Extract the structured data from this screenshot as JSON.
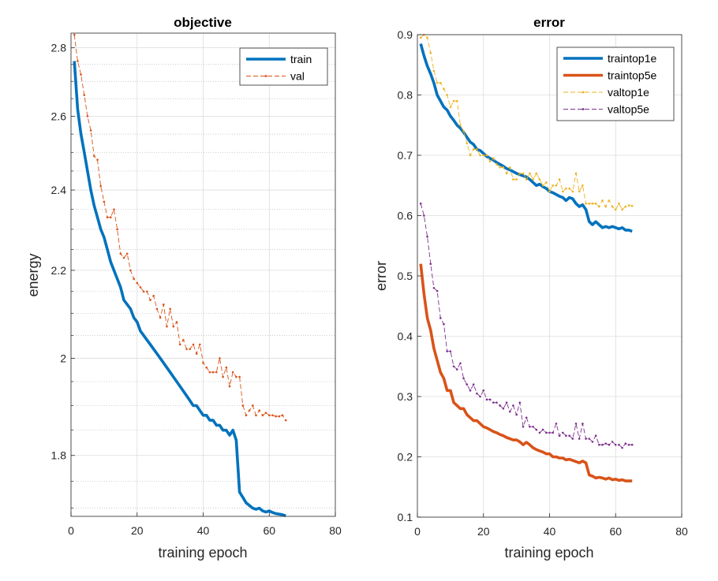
{
  "chart_data": [
    {
      "type": "line",
      "title": "objective",
      "xlabel": "training epoch",
      "ylabel": "energy",
      "xlim": [
        0,
        80
      ],
      "ylim": [
        1.685,
        2.845
      ],
      "yscale": "log",
      "xticks": [
        0,
        20,
        40,
        60,
        80
      ],
      "yticks": [
        1.8,
        2,
        2.2,
        2.4,
        2.6,
        2.8
      ],
      "ytick_labels": [
        "1.8",
        "2",
        "2.2",
        "2.4",
        "2.6",
        "2.8"
      ],
      "xtick_labels": [
        "0",
        "20",
        "40",
        "60",
        "80"
      ],
      "yminor": [
        1.7,
        1.75,
        1.85,
        1.9,
        1.95,
        2.05,
        2.1,
        2.15,
        2.25,
        2.3,
        2.35,
        2.45,
        2.5,
        2.55,
        2.65,
        2.7,
        2.75
      ],
      "grid": true,
      "legend_position": "top-right",
      "series": [
        {
          "name": "train",
          "color": "#0072BD",
          "style": "thick-solid",
          "x": [
            1,
            2,
            3,
            4,
            5,
            6,
            7,
            8,
            9,
            10,
            11,
            12,
            13,
            14,
            15,
            16,
            17,
            18,
            19,
            20,
            21,
            22,
            23,
            24,
            25,
            26,
            27,
            28,
            29,
            30,
            31,
            32,
            33,
            34,
            35,
            36,
            37,
            38,
            39,
            40,
            41,
            42,
            43,
            44,
            45,
            46,
            47,
            48,
            49,
            50,
            51,
            52,
            53,
            54,
            55,
            56,
            57,
            58,
            59,
            60,
            61,
            62,
            63,
            64,
            65
          ],
          "y": [
            2.76,
            2.62,
            2.55,
            2.5,
            2.45,
            2.4,
            2.36,
            2.33,
            2.3,
            2.28,
            2.25,
            2.22,
            2.2,
            2.18,
            2.16,
            2.13,
            2.12,
            2.11,
            2.09,
            2.08,
            2.06,
            2.05,
            2.04,
            2.03,
            2.02,
            2.01,
            2,
            1.99,
            1.98,
            1.97,
            1.96,
            1.95,
            1.94,
            1.93,
            1.92,
            1.91,
            1.9,
            1.9,
            1.89,
            1.88,
            1.88,
            1.87,
            1.87,
            1.86,
            1.86,
            1.85,
            1.85,
            1.84,
            1.85,
            1.83,
            1.73,
            1.72,
            1.71,
            1.705,
            1.7,
            1.698,
            1.7,
            1.695,
            1.693,
            1.695,
            1.692,
            1.69,
            1.689,
            1.688,
            1.686
          ]
        },
        {
          "name": "val",
          "color": "#D95319",
          "style": "dashed-dots",
          "x": [
            1,
            2,
            3,
            4,
            5,
            6,
            7,
            8,
            9,
            10,
            11,
            12,
            13,
            14,
            15,
            16,
            17,
            18,
            19,
            20,
            21,
            22,
            23,
            24,
            25,
            26,
            27,
            28,
            29,
            30,
            31,
            32,
            33,
            34,
            35,
            36,
            37,
            38,
            39,
            40,
            41,
            42,
            43,
            44,
            45,
            46,
            47,
            48,
            49,
            50,
            51,
            52,
            53,
            54,
            55,
            56,
            57,
            58,
            59,
            60,
            61,
            62,
            63,
            64,
            65
          ],
          "y": [
            2.84,
            2.76,
            2.72,
            2.66,
            2.6,
            2.56,
            2.49,
            2.48,
            2.41,
            2.37,
            2.33,
            2.33,
            2.35,
            2.3,
            2.24,
            2.23,
            2.24,
            2.2,
            2.18,
            2.17,
            2.16,
            2.15,
            2.15,
            2.13,
            2.14,
            2.11,
            2.09,
            2.12,
            2.07,
            2.11,
            2.07,
            2.08,
            2.03,
            2.04,
            2.02,
            2.02,
            2.03,
            2.01,
            2.03,
            1.99,
            1.98,
            1.97,
            1.97,
            1.97,
            2,
            1.96,
            1.98,
            1.94,
            1.97,
            1.96,
            1.96,
            1.9,
            1.88,
            1.89,
            1.9,
            1.88,
            1.89,
            1.88,
            1.885,
            1.88,
            1.88,
            1.878,
            1.878,
            1.88,
            1.87
          ]
        }
      ]
    },
    {
      "type": "line",
      "title": "error",
      "xlabel": "training epoch",
      "ylabel": "error",
      "xlim": [
        0,
        80
      ],
      "ylim": [
        0.1,
        0.9
      ],
      "xticks": [
        0,
        20,
        40,
        60,
        80
      ],
      "yticks": [
        0.1,
        0.2,
        0.3,
        0.4,
        0.5,
        0.6,
        0.7,
        0.8,
        0.9
      ],
      "ytick_labels": [
        "0.1",
        "0.2",
        "0.3",
        "0.4",
        "0.5",
        "0.6",
        "0.7",
        "0.8",
        "0.9"
      ],
      "xtick_labels": [
        "0",
        "20",
        "40",
        "60",
        "80"
      ],
      "grid": true,
      "legend_position": "top-right",
      "series": [
        {
          "name": "traintop1e",
          "color": "#0072BD",
          "style": "thick-solid",
          "x": [
            1,
            2,
            3,
            4,
            5,
            6,
            7,
            8,
            9,
            10,
            11,
            12,
            13,
            14,
            15,
            16,
            17,
            18,
            19,
            20,
            21,
            22,
            23,
            24,
            25,
            26,
            27,
            28,
            29,
            30,
            31,
            32,
            33,
            34,
            35,
            36,
            37,
            38,
            39,
            40,
            41,
            42,
            43,
            44,
            45,
            46,
            47,
            48,
            49,
            50,
            51,
            52,
            53,
            54,
            55,
            56,
            57,
            58,
            59,
            60,
            61,
            62,
            63,
            64,
            65
          ],
          "y": [
            0.885,
            0.865,
            0.848,
            0.835,
            0.82,
            0.8,
            0.79,
            0.78,
            0.775,
            0.765,
            0.758,
            0.75,
            0.745,
            0.738,
            0.73,
            0.722,
            0.718,
            0.71,
            0.708,
            0.703,
            0.698,
            0.695,
            0.692,
            0.688,
            0.685,
            0.682,
            0.678,
            0.676,
            0.673,
            0.67,
            0.668,
            0.666,
            0.664,
            0.66,
            0.655,
            0.65,
            0.652,
            0.648,
            0.645,
            0.64,
            0.638,
            0.635,
            0.632,
            0.63,
            0.625,
            0.63,
            0.628,
            0.62,
            0.615,
            0.618,
            0.61,
            0.59,
            0.585,
            0.59,
            0.585,
            0.58,
            0.582,
            0.58,
            0.582,
            0.58,
            0.578,
            0.58,
            0.576,
            0.576,
            0.574
          ]
        },
        {
          "name": "traintop5e",
          "color": "#D95319",
          "style": "thick-solid",
          "x": [
            1,
            2,
            3,
            4,
            5,
            6,
            7,
            8,
            9,
            10,
            11,
            12,
            13,
            14,
            15,
            16,
            17,
            18,
            19,
            20,
            21,
            22,
            23,
            24,
            25,
            26,
            27,
            28,
            29,
            30,
            31,
            32,
            33,
            34,
            35,
            36,
            37,
            38,
            39,
            40,
            41,
            42,
            43,
            44,
            45,
            46,
            47,
            48,
            49,
            50,
            51,
            52,
            53,
            54,
            55,
            56,
            57,
            58,
            59,
            60,
            61,
            62,
            63,
            64,
            65
          ],
          "y": [
            0.52,
            0.47,
            0.43,
            0.41,
            0.38,
            0.36,
            0.34,
            0.33,
            0.31,
            0.31,
            0.29,
            0.285,
            0.28,
            0.28,
            0.27,
            0.265,
            0.26,
            0.26,
            0.255,
            0.25,
            0.248,
            0.245,
            0.242,
            0.24,
            0.237,
            0.235,
            0.232,
            0.23,
            0.228,
            0.228,
            0.225,
            0.22,
            0.224,
            0.22,
            0.215,
            0.212,
            0.21,
            0.208,
            0.205,
            0.205,
            0.2,
            0.2,
            0.198,
            0.198,
            0.195,
            0.196,
            0.194,
            0.192,
            0.19,
            0.193,
            0.19,
            0.17,
            0.168,
            0.165,
            0.166,
            0.165,
            0.163,
            0.165,
            0.162,
            0.163,
            0.161,
            0.162,
            0.16,
            0.16,
            0.16
          ]
        },
        {
          "name": "valtop1e",
          "color": "#EDB120",
          "style": "dashed-dots",
          "x": [
            1,
            2,
            3,
            4,
            5,
            6,
            7,
            8,
            9,
            10,
            11,
            12,
            13,
            14,
            15,
            16,
            17,
            18,
            19,
            20,
            21,
            22,
            23,
            24,
            25,
            26,
            27,
            28,
            29,
            30,
            31,
            32,
            33,
            34,
            35,
            36,
            37,
            38,
            39,
            40,
            41,
            42,
            43,
            44,
            45,
            46,
            47,
            48,
            49,
            50,
            51,
            52,
            53,
            54,
            55,
            56,
            57,
            58,
            59,
            60,
            61,
            62,
            63,
            64,
            65
          ],
          "y": [
            0.895,
            0.9,
            0.895,
            0.87,
            0.84,
            0.82,
            0.82,
            0.81,
            0.8,
            0.78,
            0.79,
            0.79,
            0.75,
            0.74,
            0.72,
            0.7,
            0.71,
            0.71,
            0.7,
            0.7,
            0.7,
            0.69,
            0.695,
            0.685,
            0.68,
            0.68,
            0.67,
            0.68,
            0.66,
            0.66,
            0.67,
            0.67,
            0.66,
            0.67,
            0.66,
            0.67,
            0.66,
            0.65,
            0.655,
            0.64,
            0.65,
            0.65,
            0.66,
            0.64,
            0.645,
            0.645,
            0.64,
            0.67,
            0.64,
            0.65,
            0.62,
            0.62,
            0.62,
            0.62,
            0.615,
            0.625,
            0.615,
            0.625,
            0.615,
            0.61,
            0.62,
            0.61,
            0.615,
            0.617,
            0.616
          ]
        },
        {
          "name": "valtop5e",
          "color": "#7E2F8E",
          "style": "dashed-dots",
          "x": [
            1,
            2,
            3,
            4,
            5,
            6,
            7,
            8,
            9,
            10,
            11,
            12,
            13,
            14,
            15,
            16,
            17,
            18,
            19,
            20,
            21,
            22,
            23,
            24,
            25,
            26,
            27,
            28,
            29,
            30,
            31,
            32,
            33,
            34,
            35,
            36,
            37,
            38,
            39,
            40,
            41,
            42,
            43,
            44,
            45,
            46,
            47,
            48,
            49,
            50,
            51,
            52,
            53,
            54,
            55,
            56,
            57,
            58,
            59,
            60,
            61,
            62,
            63,
            64,
            65
          ],
          "y": [
            0.62,
            0.6,
            0.565,
            0.52,
            0.48,
            0.475,
            0.43,
            0.42,
            0.375,
            0.375,
            0.35,
            0.345,
            0.355,
            0.33,
            0.32,
            0.31,
            0.32,
            0.305,
            0.3,
            0.31,
            0.295,
            0.295,
            0.29,
            0.29,
            0.285,
            0.28,
            0.29,
            0.275,
            0.285,
            0.27,
            0.29,
            0.25,
            0.265,
            0.25,
            0.25,
            0.245,
            0.24,
            0.245,
            0.24,
            0.24,
            0.24,
            0.255,
            0.235,
            0.24,
            0.235,
            0.235,
            0.23,
            0.255,
            0.23,
            0.255,
            0.23,
            0.23,
            0.225,
            0.235,
            0.22,
            0.22,
            0.222,
            0.22,
            0.225,
            0.22,
            0.22,
            0.215,
            0.222,
            0.22,
            0.22
          ]
        }
      ]
    }
  ]
}
